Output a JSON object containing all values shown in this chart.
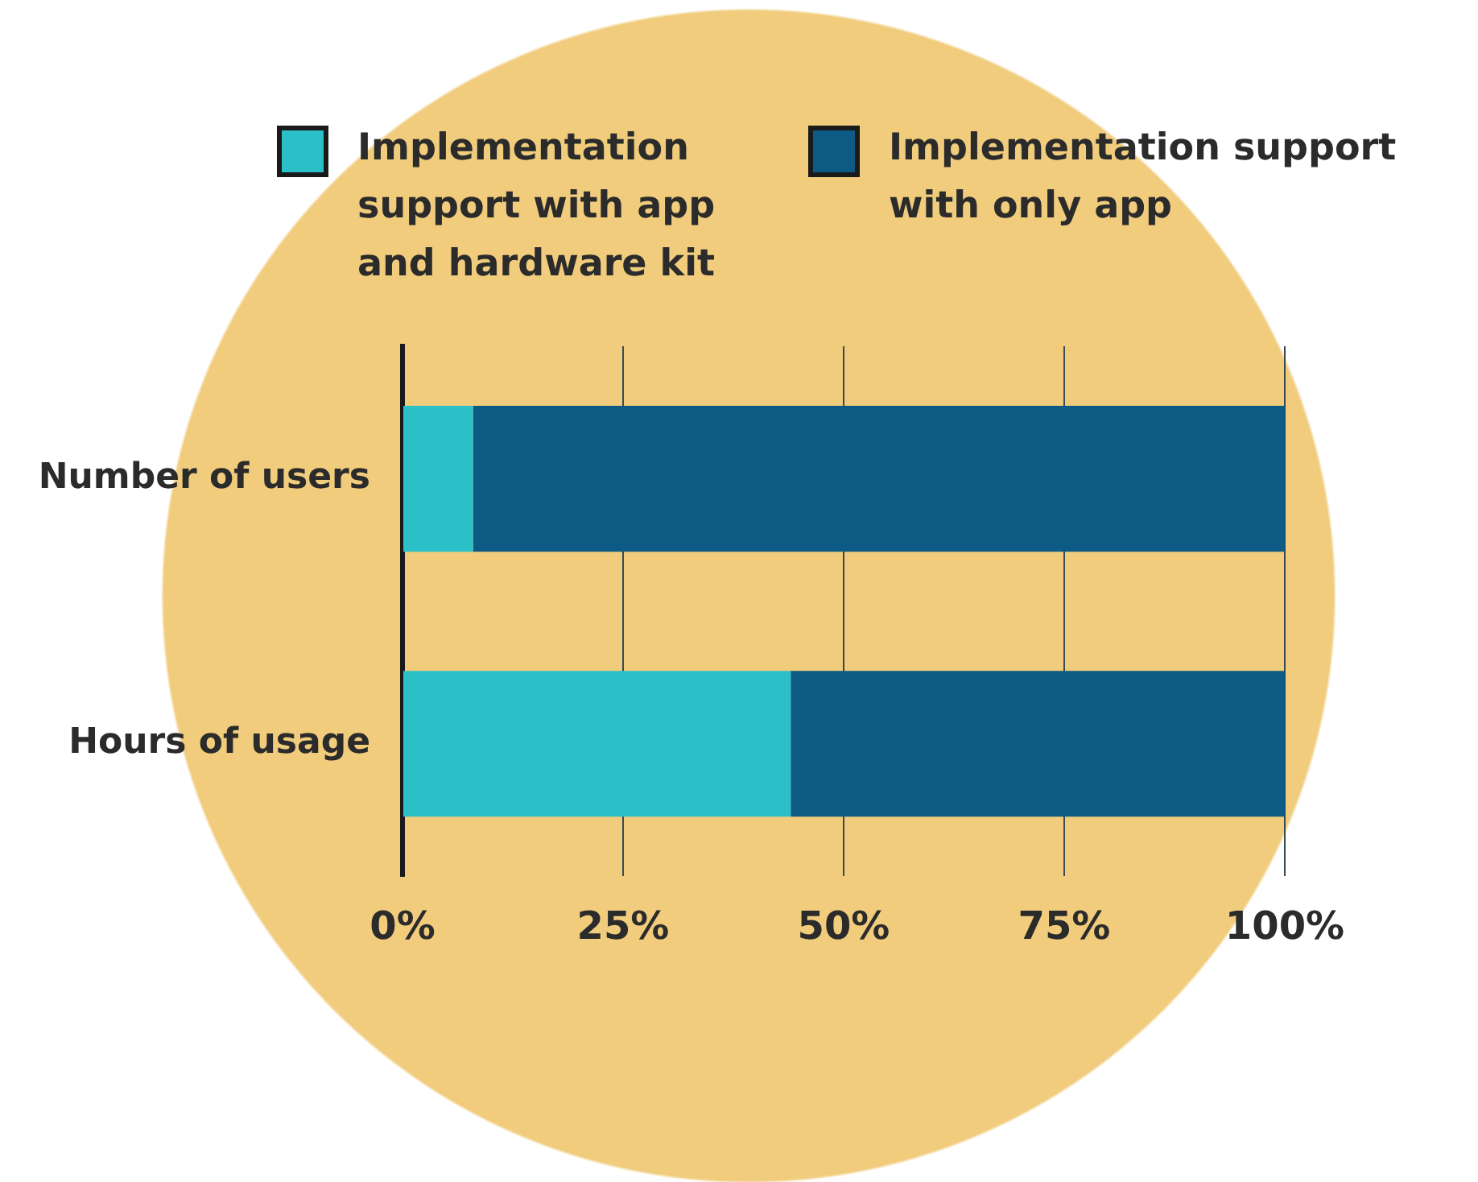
{
  "chart_data": {
    "type": "bar",
    "orientation": "horizontal",
    "stacked": true,
    "categories": [
      "Number of users",
      "Hours of usage"
    ],
    "series": [
      {
        "name": "Implementation support with app and hardware kit",
        "color": "#2bbfc8",
        "values": [
          8,
          44
        ]
      },
      {
        "name": "Implementation support with only app",
        "color": "#0d5a84",
        "values": [
          92,
          56
        ]
      }
    ],
    "xlim": [
      0,
      100
    ],
    "xticks": [
      {
        "value": 0,
        "label": "0%"
      },
      {
        "value": 25,
        "label": "25%"
      },
      {
        "value": 50,
        "label": "50%"
      },
      {
        "value": 75,
        "label": "75%"
      },
      {
        "value": 100,
        "label": "100%"
      }
    ],
    "grid": "x",
    "legend": "top"
  }
}
